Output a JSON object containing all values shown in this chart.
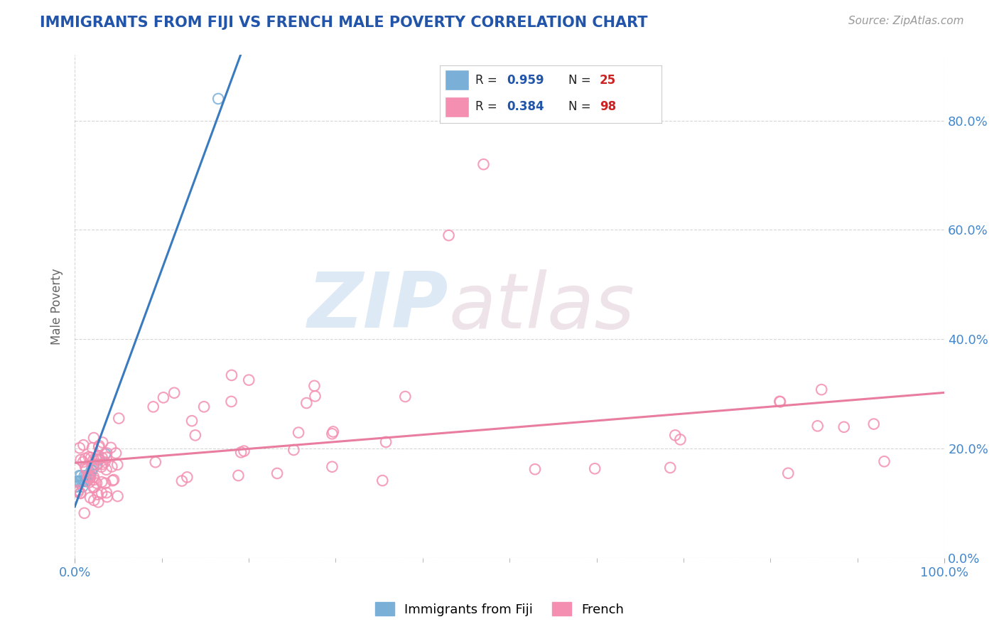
{
  "title": "IMMIGRANTS FROM FIJI VS FRENCH MALE POVERTY CORRELATION CHART",
  "source_text": "Source: ZipAtlas.com",
  "ylabel": "Male Poverty",
  "watermark_zip": "ZIP",
  "watermark_atlas": "atlas",
  "x_tick_labels": [
    "0.0%",
    "100.0%"
  ],
  "y_tick_labels": [
    "0.0%",
    "20.0%",
    "40.0%",
    "60.0%",
    "80.0%"
  ],
  "y_tick_values": [
    0.0,
    0.2,
    0.4,
    0.6,
    0.8
  ],
  "fiji_color": "#7ab0d8",
  "fiji_edge_color": "#5a90b8",
  "french_color": "#f48fb1",
  "french_edge_color": "#e06090",
  "fiji_line_color": "#3a7abf",
  "french_line_color": "#e87da0",
  "background_color": "#ffffff",
  "grid_color": "#bbbbbb",
  "title_color": "#2255aa",
  "axis_label_color": "#666666",
  "tick_label_color": "#4488cc",
  "legend_R_color": "#2255aa",
  "legend_N_color": "#cc2222",
  "xlim": [
    0.0,
    1.0
  ],
  "ylim_max": 0.92,
  "fiji_R": 0.959,
  "fiji_N": 25,
  "french_R": 0.384,
  "french_N": 98
}
